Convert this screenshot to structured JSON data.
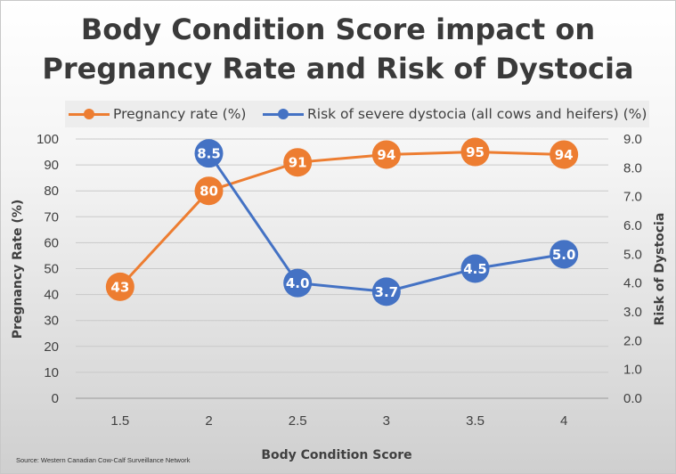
{
  "chart_data": {
    "type": "line",
    "title_lines": [
      "Body Condition Score impact on",
      "Pregnancy Rate and Risk of Dystocia"
    ],
    "xlabel": "Body Condition Score",
    "ylabel": "Pregnancy Rate (%)",
    "y2label": "Risk of Dystocia",
    "categories": [
      "1.5",
      "2",
      "2.5",
      "3",
      "3.5",
      "4"
    ],
    "ylim": [
      0,
      100
    ],
    "y2lim": [
      0,
      9
    ],
    "y_ticks": [
      "0",
      "10",
      "20",
      "30",
      "40",
      "50",
      "60",
      "70",
      "80",
      "90",
      "100"
    ],
    "y2_ticks": [
      "0.0",
      "1.0",
      "2.0",
      "3.0",
      "4.0",
      "5.0",
      "6.0",
      "7.0",
      "8.0",
      "9.0"
    ],
    "grid": true,
    "legend_position": "top",
    "series": [
      {
        "name": "Pregnancy rate (%)",
        "axis": "left",
        "color": "#ed7d31",
        "x": [
          "1.5",
          "2",
          "2.5",
          "3",
          "3.5",
          "4"
        ],
        "values": [
          43,
          80,
          91,
          94,
          95,
          94
        ],
        "labels": [
          "43",
          "80",
          "91",
          "94",
          "95",
          "94"
        ]
      },
      {
        "name": "Risk of severe dystocia (all cows and heifers) (%)",
        "axis": "right",
        "color": "#4472c4",
        "x": [
          "2",
          "2.5",
          "3",
          "3.5",
          "4"
        ],
        "values": [
          8.5,
          4.0,
          3.7,
          4.5,
          5.0
        ],
        "labels": [
          "8.5",
          "4.0",
          "3.7",
          "4.5",
          "5.0"
        ]
      }
    ],
    "source": "Source: Western Canadian Cow-Calf Surveillance Network"
  }
}
